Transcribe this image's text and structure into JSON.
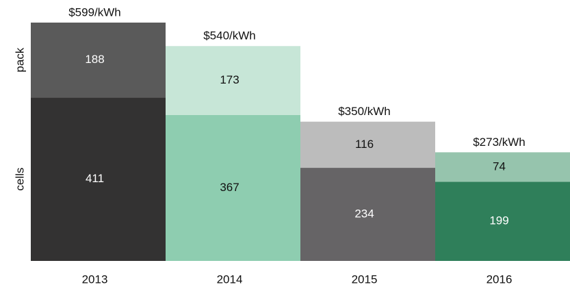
{
  "chart_data": {
    "type": "stacked_bar",
    "categories": [
      "2013",
      "2014",
      "2015",
      "2016"
    ],
    "series": [
      {
        "name": "cells",
        "values": [
          411,
          367,
          234,
          199
        ],
        "colors": [
          "#333232",
          "#8ecdb0",
          "#666466",
          "#2f7f5a"
        ]
      },
      {
        "name": "pack",
        "values": [
          188,
          173,
          116,
          74
        ],
        "colors": [
          "#5a5a5a",
          "#c7e6d7",
          "#bcbcbc",
          "#96c4ad"
        ]
      }
    ],
    "total_labels": [
      "$599/kWh",
      "$540/kWh",
      "$350/kWh",
      "$273/kWh"
    ],
    "ylim": [
      0,
      600
    ]
  }
}
